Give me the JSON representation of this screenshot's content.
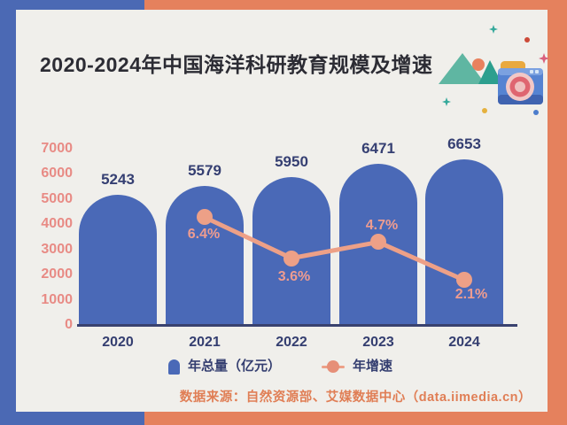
{
  "header": {
    "title": "2020-2024年中国海洋科研教育规模及增速"
  },
  "chart_data": {
    "type": "bar+line",
    "title": "2020-2024年中国海洋科研教育规模及增速",
    "categories": [
      "2020",
      "2021",
      "2022",
      "2023",
      "2024"
    ],
    "series": [
      {
        "name": "年总量（亿元）",
        "type": "bar",
        "color": "#4a69b7",
        "values": [
          5243,
          5579,
          5950,
          6471,
          6653
        ]
      },
      {
        "name": "年增速",
        "type": "line",
        "color": "#eda087",
        "x_categories": [
          "2021",
          "2022",
          "2023",
          "2024"
        ],
        "values": [
          6.4,
          3.6,
          4.7,
          2.1
        ],
        "value_labels": [
          "6.4%",
          "3.6%",
          "4.7%",
          "2.1%"
        ]
      }
    ],
    "y_axis": {
      "ticks": [
        "7000",
        "6000",
        "5000",
        "4000",
        "3000",
        "2000",
        "1000",
        "0"
      ],
      "range": [
        0,
        7000
      ],
      "tick_color": "#e88b85"
    },
    "grid": false,
    "legend_position": "bottom"
  },
  "footer": {
    "source": "数据来源：自然资源部、艾媒数据中心（data.iimedia.cn）"
  },
  "colors": {
    "background_left": "#4b69b4",
    "background_right": "#e5815d",
    "card": "#f0efeb",
    "bar_blue": "#4a69b7",
    "line_salmon": "#eda087",
    "navy_text": "#343e70",
    "pink_ticks": "#e88b85",
    "source_orange": "#e07e55",
    "title_text": "#2c2c34"
  },
  "decorations": [
    "mountains-icon",
    "sun-icon",
    "camera-icon",
    "sparkle-icon",
    "dot-accents"
  ]
}
